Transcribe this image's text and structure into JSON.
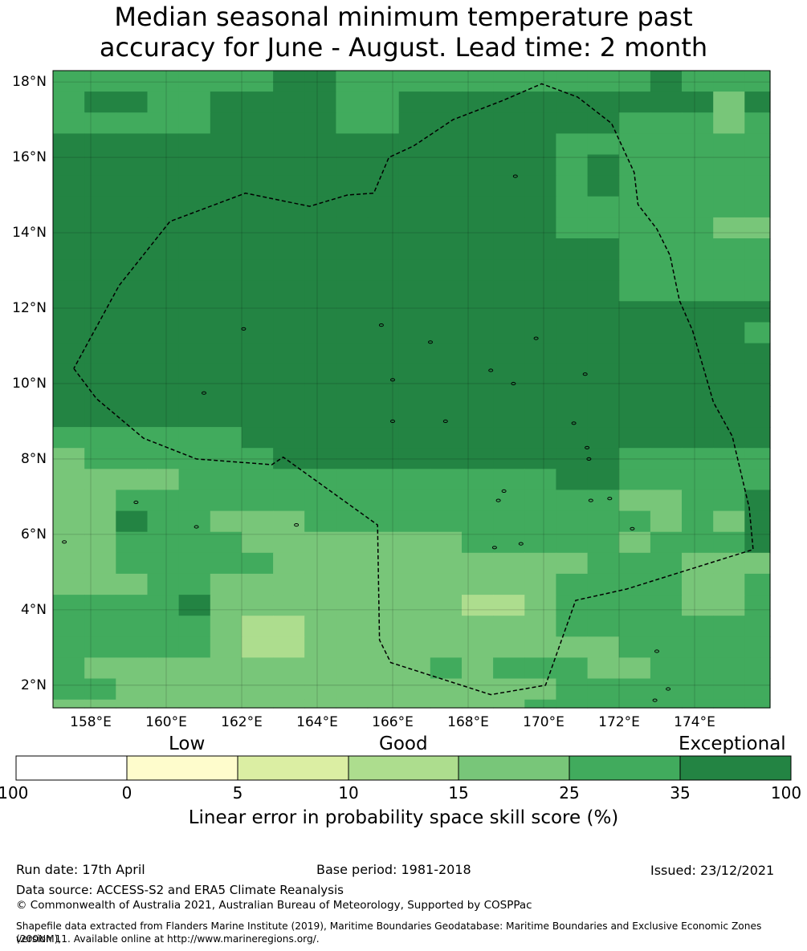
{
  "title_line1": "Median seasonal minimum temperature past",
  "title_line2": "accuracy for June - August. Lead time: 2 month",
  "lat_labels": [
    "18°N",
    "16°N",
    "14°N",
    "12°N",
    "10°N",
    "8°N",
    "6°N",
    "4°N",
    "2°N"
  ],
  "lon_labels": [
    "158°E",
    "160°E",
    "162°E",
    "164°E",
    "166°E",
    "168°E",
    "170°E",
    "172°E",
    "174°E"
  ],
  "colors": {
    "bins": [
      "#ffffff",
      "#fefccc",
      "#dbeea3",
      "#addd8e",
      "#78c679",
      "#41ab5d",
      "#238443"
    ],
    "land": "#000000",
    "boundary": "#000000"
  },
  "map_data": {
    "extent": {
      "lon": [
        157.0,
        176.0
      ],
      "lat": [
        1.4,
        18.3
      ]
    },
    "grid": {
      "lon_start": 157.0,
      "lat_top": 18.3,
      "dlon": 0.833,
      "dlat": 0.556,
      "ncols": 23,
      "nrows": 31
    },
    "skill_class_rows": [
      "55555556655555555556555",
      "56655666655666666666646",
      "55555666655666666655545",
      "66666666666666665555555",
      "66666666666666665655555",
      "66666666666666665655555",
      "66666666666666665555555",
      "66666666666666665555544",
      "66666666666666666655555",
      "66666666666666666655555",
      "66666666666666666655555",
      "66666666666666666666666",
      "66666666666666666666665",
      "66666666666666666666666",
      "66666666666666666666666",
      "66666666666666666666666",
      "66666666666666666666666",
      "55555566666666666666666",
      "45555556666666666655555",
      "44445555555555556655555",
      "44555555555555555544556",
      "44655444555555555554546",
      "44555544444445555545556",
      "44555554444444444555444",
      "44455444444444445555445",
      "55556444444443345555445",
      "55555433444444445555555",
      "55555433444444444455555",
      "54444444444454555445555",
      "55444444444444445555555",
      "44444444444444455555555"
    ],
    "boundary_lonlat": [
      [
        157.55,
        10.4
      ],
      [
        158.15,
        9.6
      ],
      [
        159.4,
        8.55
      ],
      [
        160.8,
        8.0
      ],
      [
        162.8,
        7.85
      ],
      [
        163.1,
        8.05
      ],
      [
        165.6,
        6.25
      ],
      [
        165.65,
        3.2
      ],
      [
        165.95,
        2.6
      ],
      [
        168.6,
        1.75
      ],
      [
        170.05,
        2.0
      ],
      [
        170.85,
        4.25
      ],
      [
        172.2,
        4.55
      ],
      [
        175.55,
        5.6
      ],
      [
        175.45,
        6.7
      ],
      [
        175.0,
        8.6
      ],
      [
        174.5,
        9.5
      ],
      [
        173.95,
        11.4
      ],
      [
        173.6,
        12.2
      ],
      [
        173.35,
        13.4
      ],
      [
        173.0,
        14.1
      ],
      [
        172.5,
        14.75
      ],
      [
        172.4,
        15.6
      ],
      [
        171.8,
        16.9
      ],
      [
        170.9,
        17.6
      ],
      [
        169.95,
        17.95
      ],
      [
        168.9,
        17.5
      ],
      [
        167.6,
        17.0
      ],
      [
        166.55,
        16.3
      ],
      [
        165.9,
        16.0
      ],
      [
        165.5,
        15.05
      ],
      [
        164.8,
        15.0
      ],
      [
        163.8,
        14.7
      ],
      [
        162.1,
        15.05
      ],
      [
        160.1,
        14.3
      ],
      [
        158.75,
        12.6
      ],
      [
        157.55,
        10.4
      ]
    ],
    "islands_lonlat": [
      [
        159.2,
        6.85
      ],
      [
        163.45,
        6.25
      ],
      [
        168.7,
        5.65
      ],
      [
        169.4,
        5.75
      ],
      [
        171.25,
        6.9
      ],
      [
        171.75,
        6.95
      ],
      [
        173.0,
        2.9
      ],
      [
        173.3,
        1.9
      ],
      [
        172.95,
        1.6
      ],
      [
        168.95,
        7.15
      ],
      [
        162.05,
        11.45
      ],
      [
        165.7,
        11.55
      ],
      [
        167.0,
        11.1
      ],
      [
        169.8,
        11.2
      ],
      [
        169.2,
        10.0
      ],
      [
        157.3,
        5.8
      ],
      [
        161.0,
        9.75
      ],
      [
        160.8,
        6.2
      ],
      [
        166.0,
        10.1
      ],
      [
        168.6,
        10.35
      ],
      [
        168.8,
        6.9
      ],
      [
        171.1,
        10.25
      ],
      [
        170.8,
        8.95
      ],
      [
        171.15,
        8.3
      ],
      [
        171.2,
        8.0
      ],
      [
        172.35,
        6.15
      ],
      [
        166.0,
        9.0
      ],
      [
        167.4,
        9.0
      ],
      [
        169.25,
        15.5
      ]
    ]
  },
  "colorbar": {
    "category_labels": [
      "Low",
      "Good",
      "Exceptional"
    ],
    "tick_labels": [
      "-100",
      "0",
      "5",
      "10",
      "15",
      "25",
      "35",
      "100"
    ],
    "title": "Linear error in probability space skill score (%)"
  },
  "footer": {
    "run_date": "Run date: 17th April",
    "base_period": "Base period: 1981-2018",
    "issued": "Issued: 23/12/2021",
    "data_source": "Data source: ACCESS-S2 and ERA5 Climate Reanalysis",
    "copyright": "© Commonwealth of Australia 2021, Australian Bureau of Meteorology, Supported by COSPPac",
    "shapefile_line1": "Shapefile data extracted from Flanders Marine Institute (2019), Maritime Boundaries Geodatabase: Maritime Boundaries and Exclusive Economic Zones (200NM),",
    "shapefile_line2": "version 11. Available online at http://www.marineregions.org/."
  }
}
